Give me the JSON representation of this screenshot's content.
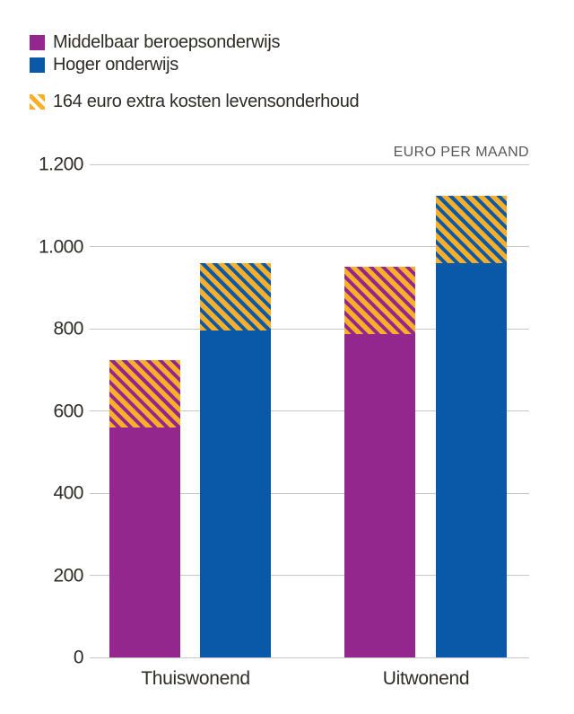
{
  "colors": {
    "purple": "#94278E",
    "blue": "#0A58A8",
    "yellow": "#FAAF28",
    "grid": "#C7C7C7",
    "text": "#2F2B28"
  },
  "legend": {
    "items": [
      {
        "label": "Middelbaar beroepsonderwijs",
        "color_key": "purple"
      },
      {
        "label": "Hoger onderwijs",
        "color_key": "blue"
      }
    ],
    "extra_label": "164 euro extra kosten levensonderhoud"
  },
  "chart_data": {
    "type": "bar",
    "stacked": true,
    "title": "",
    "unit_label": "EURO PER MAAND",
    "categories": [
      "Thuiswonend",
      "Uitwonend"
    ],
    "series": [
      {
        "name": "Middelbaar beroepsonderwijs",
        "color_key": "purple",
        "base_values": [
          560,
          787
        ],
        "totals_with_extra": [
          724,
          951
        ]
      },
      {
        "name": "Hoger onderwijs",
        "color_key": "blue",
        "base_values": [
          795,
          960
        ],
        "totals_with_extra": [
          959,
          1124
        ]
      }
    ],
    "extra_segment": {
      "label": "164 euro extra kosten levensonderhoud",
      "value": 164,
      "color_key": "yellow",
      "pattern": "diagonal-stripes"
    },
    "y_axis": {
      "range": [
        0,
        1200
      ],
      "ticks": [
        {
          "value": 0,
          "label": "0"
        },
        {
          "value": 200,
          "label": "200"
        },
        {
          "value": 400,
          "label": "400"
        },
        {
          "value": 600,
          "label": "600"
        },
        {
          "value": 800,
          "label": "800"
        },
        {
          "value": 1000,
          "label": "1.000"
        },
        {
          "value": 1200,
          "label": "1.200"
        }
      ],
      "gridlines": true
    },
    "legend_position": "top-left"
  }
}
